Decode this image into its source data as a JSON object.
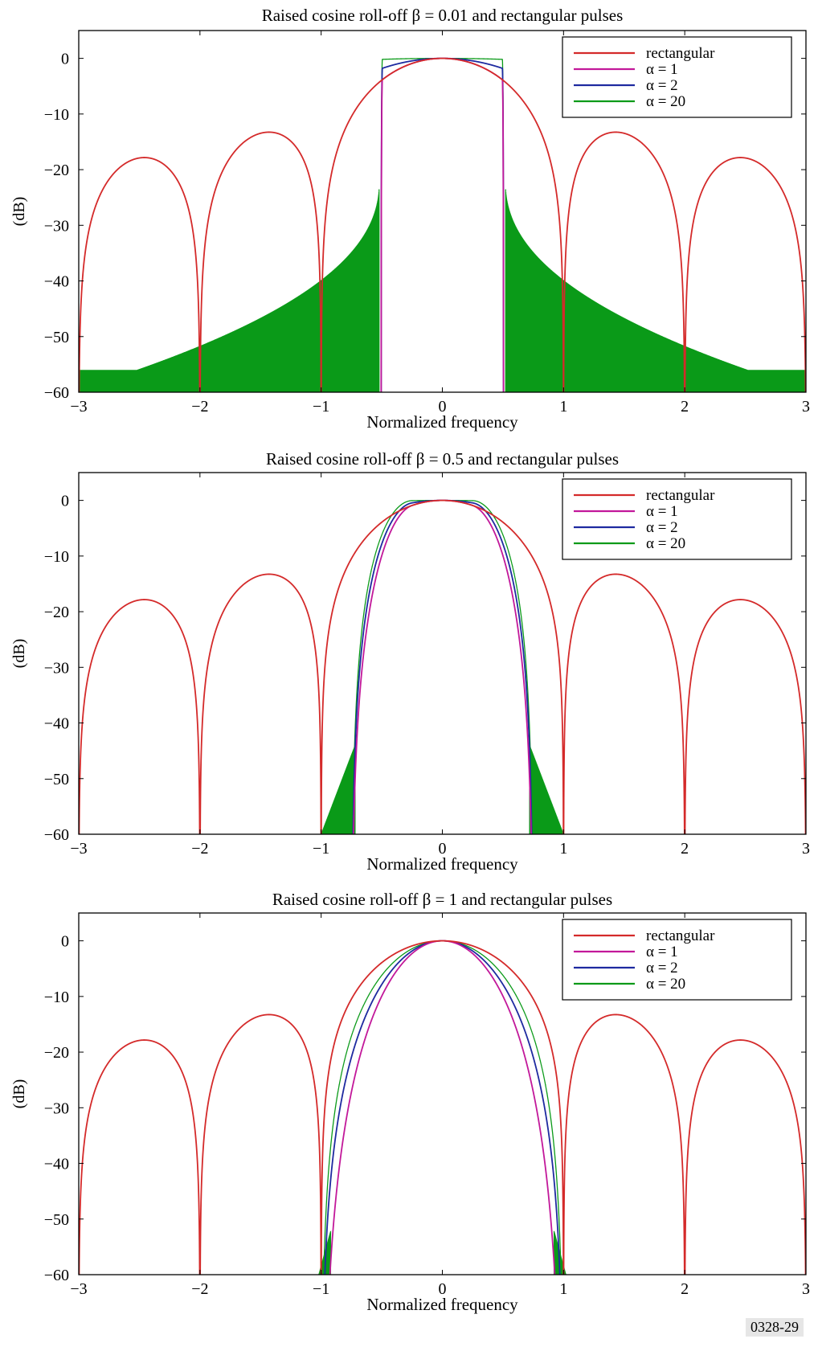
{
  "figure_id": "0328-29",
  "colors": {
    "rectangular": "#d42a2a",
    "alpha1": "#c2189a",
    "alpha2": "#1e2aa0",
    "alpha20": "#0a9a18",
    "frame": "#000000"
  },
  "chart_data": [
    {
      "type": "line",
      "title": "Raised cosine roll-off β = 0.01 and rectangular pulses",
      "xlabel": "Normalized frequency",
      "ylabel": "(dB)",
      "beta": 0.01,
      "xlim": [
        -3,
        3
      ],
      "ylim": [
        -60,
        5
      ],
      "xticks": [
        "−3",
        "−2",
        "−1",
        "0",
        "1",
        "2",
        "3"
      ],
      "yticks": [
        "0",
        "−10",
        "−20",
        "−30",
        "−40",
        "−50",
        "−60"
      ],
      "legend": {
        "position": "top-right",
        "entries": [
          "rectangular",
          "α = 1",
          "α = 2",
          "α = 20"
        ]
      },
      "series": [
        {
          "name": "rectangular",
          "alpha": 0
        },
        {
          "name": "α = 1",
          "alpha": 1
        },
        {
          "name": "α = 2",
          "alpha": 2
        },
        {
          "name": "α = 20",
          "alpha": 20
        }
      ]
    },
    {
      "type": "line",
      "title": "Raised cosine roll-off β = 0.5 and rectangular pulses",
      "xlabel": "Normalized frequency",
      "ylabel": "(dB)",
      "beta": 0.5,
      "xlim": [
        -3,
        3
      ],
      "ylim": [
        -60,
        5
      ],
      "xticks": [
        "−3",
        "−2",
        "−1",
        "0",
        "1",
        "2",
        "3"
      ],
      "yticks": [
        "0",
        "−10",
        "−20",
        "−30",
        "−40",
        "−50",
        "−60"
      ],
      "legend": {
        "position": "top-right",
        "entries": [
          "rectangular",
          "α = 1",
          "α = 2",
          "α = 20"
        ]
      },
      "series": [
        {
          "name": "rectangular",
          "alpha": 0
        },
        {
          "name": "α = 1",
          "alpha": 1
        },
        {
          "name": "α = 2",
          "alpha": 2
        },
        {
          "name": "α = 20",
          "alpha": 20
        }
      ]
    },
    {
      "type": "line",
      "title": "Raised cosine roll-off β = 1 and rectangular pulses",
      "xlabel": "Normalized frequency",
      "ylabel": "(dB)",
      "beta": 1,
      "xlim": [
        -3,
        3
      ],
      "ylim": [
        -60,
        5
      ],
      "xticks": [
        "−3",
        "−2",
        "−1",
        "0",
        "1",
        "2",
        "3"
      ],
      "yticks": [
        "0",
        "−10",
        "−20",
        "−30",
        "−40",
        "−50",
        "−60"
      ],
      "legend": {
        "position": "top-right",
        "entries": [
          "rectangular",
          "α = 1",
          "α = 2",
          "α = 20"
        ]
      },
      "series": [
        {
          "name": "rectangular",
          "alpha": 0
        },
        {
          "name": "α = 1",
          "alpha": 1
        },
        {
          "name": "α = 2",
          "alpha": 2
        },
        {
          "name": "α = 20",
          "alpha": 20
        }
      ]
    }
  ]
}
